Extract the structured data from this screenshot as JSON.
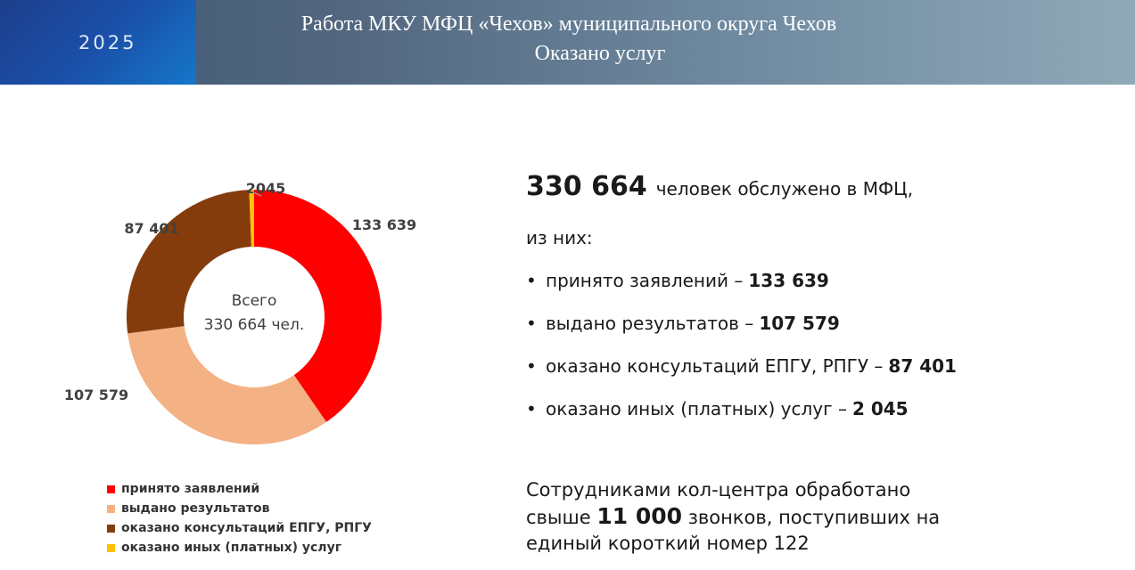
{
  "header": {
    "year": "2025",
    "title_line1": "Работа МКУ МФЦ «Чехов» муниципального округа Чехов",
    "title_line2": "Оказано услуг"
  },
  "chart_data": {
    "type": "pie",
    "donut": true,
    "center_label_line1": "Всего",
    "center_label_line2": "330 664 чел.",
    "series": [
      {
        "name": "принято заявлений",
        "value": 133639,
        "label": "133 639",
        "color": "#ff0000"
      },
      {
        "name": "выдано результатов",
        "value": 107579,
        "label": "107 579",
        "color": "#f4b183"
      },
      {
        "name": "оказано консультаций ЕПГУ, РПГУ",
        "value": 87401,
        "label": "87 401",
        "color": "#843c0c"
      },
      {
        "name": "оказано иных (платных) услуг",
        "value": 2045,
        "label": "2045",
        "color": "#ffc000"
      }
    ],
    "legend_position": "bottom"
  },
  "stats": {
    "total_value": "330 664",
    "total_text": "человек обслужено в МФЦ,",
    "sub_text": "из них:",
    "bullets": [
      {
        "text": "принято заявлений – ",
        "value": "133 639"
      },
      {
        "text": "выдано результатов – ",
        "value": "107 579"
      },
      {
        "text": "оказано консультаций ЕПГУ, РПГУ – ",
        "value": "87 401"
      },
      {
        "text": "оказано иных (платных) услуг – ",
        "value": "2 045"
      }
    ],
    "bullet_symbol": "•"
  },
  "callcenter": {
    "line1": "Сотрудниками кол-центра обработано",
    "line2_prefix": "свыше ",
    "line2_value": "11 000",
    "line2_suffix": " звонков, поступивших на",
    "line3": "единый короткий номер 122"
  }
}
